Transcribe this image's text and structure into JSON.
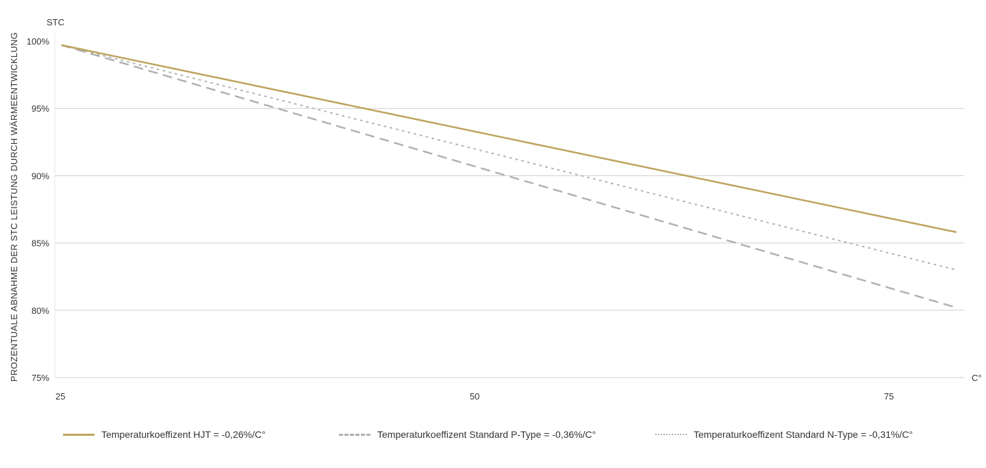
{
  "chart_data": {
    "type": "line",
    "ylabel": "PROZENTUALE ABNAHME DER STC LEISTUNG DURCH WÄRMEENTWICKLUNG",
    "y_unit": "STC",
    "x_unit": "C°",
    "xlim": [
      25,
      79
    ],
    "ylim": [
      75,
      100
    ],
    "x_ticks": [
      "25",
      "50",
      "75"
    ],
    "x_tick_values": [
      25,
      50,
      75
    ],
    "y_ticks": [
      "100%",
      "95%",
      "90%",
      "85%",
      "80%",
      "75%"
    ],
    "y_tick_values": [
      100,
      95,
      90,
      85,
      80,
      75
    ],
    "grid": "horizontal",
    "legend_placement": "bottom",
    "series": [
      {
        "name": "Temperaturkoeffizent HJT = -0,26%/C°",
        "x": [
          25,
          79
        ],
        "values": [
          99.7,
          85.8
        ],
        "color": "#bfa25e",
        "style": "solid"
      },
      {
        "name": "Temperaturkoeffizent Standard P-Type = -0,36%/C°",
        "x": [
          25,
          79
        ],
        "values": [
          99.7,
          80.2
        ],
        "color": "#b0b0b0",
        "style": "dashed"
      },
      {
        "name": "Temperaturkoeffizent Standard N-Type = -0,31%/C°",
        "x": [
          25,
          79
        ],
        "values": [
          99.7,
          83.0
        ],
        "color": "#b0b0b0",
        "style": "dotted"
      }
    ]
  }
}
